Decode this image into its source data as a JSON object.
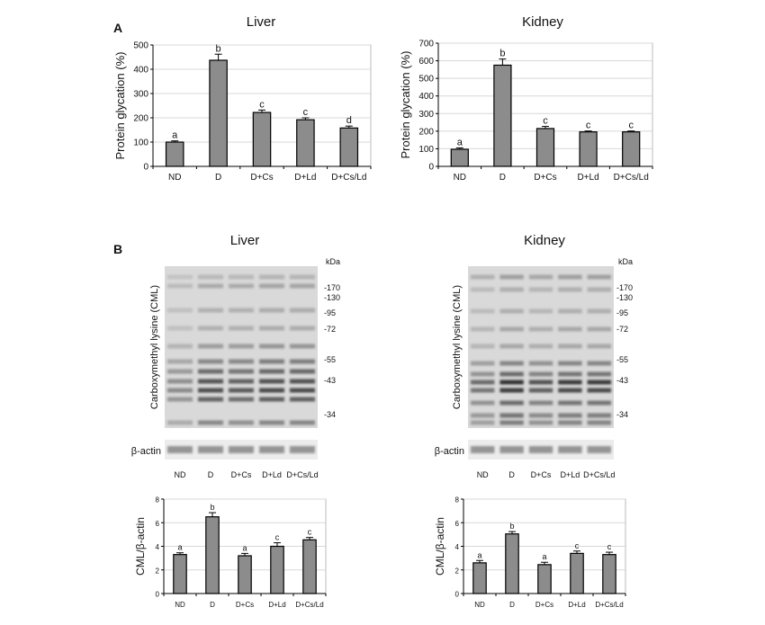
{
  "panels": {
    "a": "A",
    "b": "B"
  },
  "titles": {
    "a_liver": "Liver",
    "a_kidney": "Kidney",
    "b_liver": "Liver",
    "b_kidney": "Kidney"
  },
  "blots": {
    "ylabel": "Carboxymethyl lysine (CML)",
    "loading_label": "β-actin",
    "unit": "kDa",
    "markers": [
      "-170",
      "-130",
      "-95",
      "-72",
      "-55",
      "-43",
      "-34"
    ],
    "lanes": [
      "ND",
      "D",
      "D+Cs",
      "D+Ld",
      "D+Cs/Ld"
    ]
  },
  "colors": {
    "bar": "#8c8c8c",
    "grid": "#d8d8d8",
    "blot_bg": "#d9d9d9",
    "band": "#333333"
  },
  "chart_data": [
    {
      "id": "a_liver",
      "type": "bar",
      "title": "Liver",
      "ylabel": "Protein glycation (%)",
      "xlabel": "",
      "categories": [
        "ND",
        "D",
        "D+Cs",
        "D+Ld",
        "D+Cs/Ld"
      ],
      "values": [
        100,
        437,
        222,
        192,
        158
      ],
      "errors": [
        5,
        25,
        10,
        8,
        8
      ],
      "letters": [
        "a",
        "b",
        "c",
        "c",
        "d"
      ],
      "ylim": [
        0,
        500
      ],
      "yticks": [
        0,
        100,
        200,
        300,
        400,
        500
      ],
      "grid": true
    },
    {
      "id": "a_kidney",
      "type": "bar",
      "title": "Kidney",
      "ylabel": "Protein glycation (%)",
      "xlabel": "",
      "categories": [
        "ND",
        "D",
        "D+Cs",
        "D+Ld",
        "D+Cs/Ld"
      ],
      "values": [
        97,
        575,
        215,
        196,
        196
      ],
      "errors": [
        8,
        35,
        12,
        5,
        5
      ],
      "letters": [
        "a",
        "b",
        "c",
        "c",
        "c"
      ],
      "ylim": [
        0,
        700
      ],
      "yticks": [
        0,
        100,
        200,
        300,
        400,
        500,
        600,
        700
      ],
      "grid": true
    },
    {
      "id": "b_liver",
      "type": "bar",
      "title": "Liver",
      "ylabel": "CML/β-actin",
      "xlabel": "",
      "categories": [
        "ND",
        "D",
        "D+Cs",
        "D+Ld",
        "D+Cs/Ld"
      ],
      "values": [
        3.3,
        6.5,
        3.2,
        4.0,
        4.55
      ],
      "errors": [
        0.15,
        0.35,
        0.2,
        0.3,
        0.2
      ],
      "letters": [
        "a",
        "b",
        "a",
        "c",
        "c"
      ],
      "ylim": [
        0,
        8
      ],
      "yticks": [
        0,
        2,
        4,
        6,
        8
      ],
      "grid": true
    },
    {
      "id": "b_kidney",
      "type": "bar",
      "title": "Kidney",
      "ylabel": "CML/β-actin",
      "xlabel": "",
      "categories": [
        "ND",
        "D",
        "D+Cs",
        "D+Ld",
        "D+Cs/Ld"
      ],
      "values": [
        2.6,
        5.05,
        2.45,
        3.4,
        3.3
      ],
      "errors": [
        0.2,
        0.2,
        0.2,
        0.2,
        0.2
      ],
      "letters": [
        "a",
        "b",
        "a",
        "c",
        "c"
      ],
      "ylim": [
        0,
        8
      ],
      "yticks": [
        0,
        2,
        4,
        6,
        8
      ],
      "grid": true
    }
  ]
}
